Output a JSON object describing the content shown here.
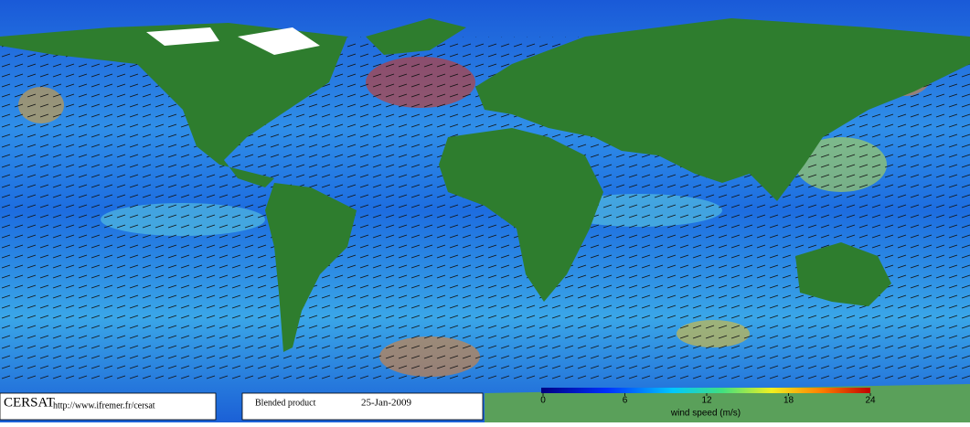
{
  "logo": "CERSAT",
  "url": "http://www.ifremer.fr/cersat",
  "product": "Blended product",
  "date": "25-Jan-2009",
  "colorbar": {
    "label": "wind speed (m/s)",
    "lim": [
      0,
      24
    ],
    "ticks": [
      0,
      6,
      12,
      18,
      24
    ]
  }
}
